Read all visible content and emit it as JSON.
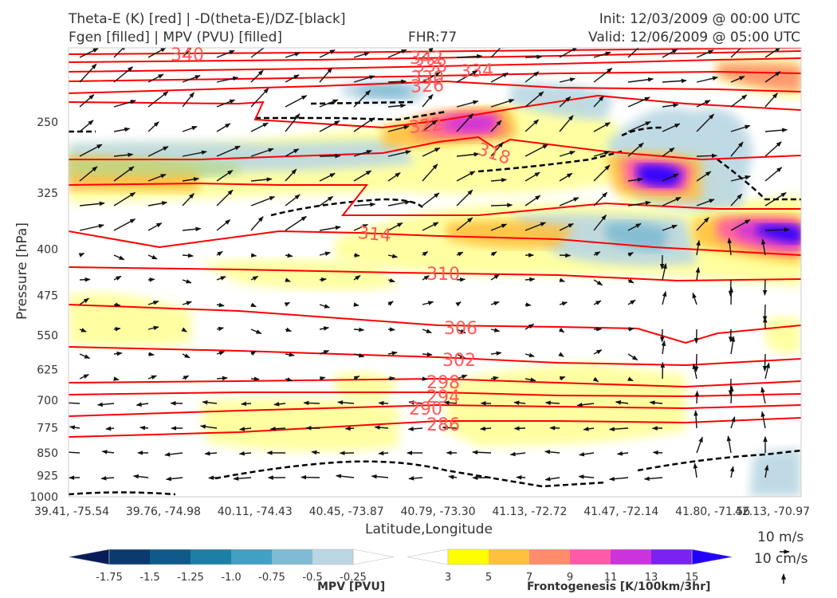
{
  "header": {
    "title_left_1": "Theta-E (K) [red] | -D(theta-E)/DZ-[black]",
    "title_left_2": "Fgen [filled] | MPV (PVU) [filled]",
    "title_center": "FHR:77",
    "title_right_1": "Init: 12/03/2009 @ 00:00 UTC",
    "title_right_2": "Valid: 12/06/2009 @ 05:00 UTC"
  },
  "chart_data": {
    "type": "cross-section",
    "xlabel": "Latitude,Longitude",
    "ylabel": "Pressure [hPa]",
    "x_ticks": [
      "39.41, -75.54",
      "39.76, -74.98",
      "40.11, -74.43",
      "40.45, -73.87",
      "40.79, -73.30",
      "41.13, -72.72",
      "41.47, -72.14",
      "41.80, -71.56",
      "42.13, -70.97"
    ],
    "y_ticks": [
      "250",
      "325",
      "400",
      "475",
      "550",
      "625",
      "700",
      "775",
      "850",
      "925",
      "1000"
    ],
    "y_scale": "log-pressure (inverted)",
    "ylim": [
      1000,
      190
    ],
    "theta_e_labels": [
      "340",
      "342",
      "338",
      "334",
      "330",
      "326",
      "322",
      "318",
      "314",
      "310",
      "306",
      "302",
      "298",
      "294",
      "290",
      "286"
    ],
    "theta_e_color": "#ff0000",
    "dthetae_dz_color": "#000000",
    "wind_scale_labels": [
      "10 m/s",
      "10 cm/s"
    ],
    "colorbar_mpv": {
      "title": "MPV [PVU]",
      "tick_labels": [
        "-1.75",
        "-1.5",
        "-1.25",
        "-1.0",
        "-0.75",
        "-0.5",
        "-0.25"
      ],
      "colors": [
        "#081d58",
        "#0c3a6f",
        "#0f5a8a",
        "#1c7fa6",
        "#41a0c4",
        "#7fbbd3",
        "#bad7e3",
        "#ffffff"
      ]
    },
    "colorbar_fgen": {
      "title": "Frontogenesis [K/100km/3hr]",
      "tick_labels": [
        "3",
        "5",
        "7",
        "9",
        "11",
        "13",
        "15"
      ],
      "colors": [
        "#ffffff",
        "#ffff00",
        "#ffc040",
        "#ff8c6a",
        "#ff5aa8",
        "#cc33dd",
        "#7a22ee",
        "#2200ff"
      ]
    }
  }
}
